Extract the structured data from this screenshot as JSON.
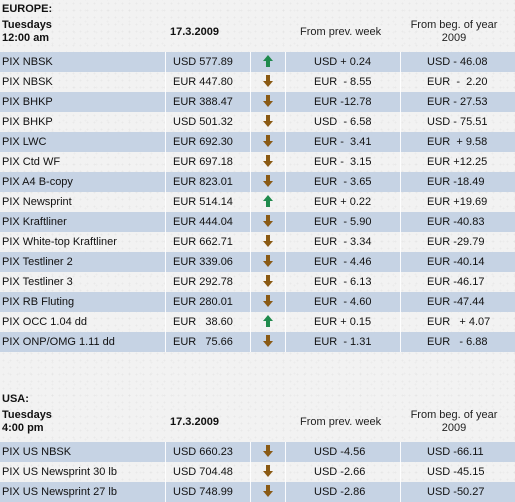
{
  "europe": {
    "region_label": "EUROPE:",
    "day_label": "Tuesdays",
    "time_label": "12:00 am",
    "date": "17.3.2009",
    "col_week": "From prev. week",
    "col_year_1": "From beg. of year",
    "col_year_2": "2009",
    "rows": [
      {
        "name": "PIX NBSK",
        "price": "USD 577.89",
        "dir": "up",
        "week": "USD + 0.24",
        "year": "USD - 46.08"
      },
      {
        "name": "PIX NBSK",
        "price": "EUR 447.80",
        "dir": "down",
        "week": "EUR  - 8.55",
        "year": "EUR  -  2.20"
      },
      {
        "name": "PIX BHKP",
        "price": "EUR 388.47",
        "dir": "down",
        "week": "EUR -12.78",
        "year": "EUR - 27.53"
      },
      {
        "name": "PIX BHKP",
        "price": "USD 501.32",
        "dir": "down",
        "week": "USD  - 6.58",
        "year": "USD - 75.51"
      },
      {
        "name": "PIX LWC",
        "price": "EUR 692.30",
        "dir": "down",
        "week": "EUR -  3.41",
        "year": "EUR  + 9.58"
      },
      {
        "name": "PIX Ctd WF",
        "price": "EUR 697.18",
        "dir": "down",
        "week": "EUR -  3.15",
        "year": "EUR +12.25"
      },
      {
        "name": "PIX A4 B-copy",
        "price": "EUR 823.01",
        "dir": "down",
        "week": "EUR  - 3.65",
        "year": "EUR -18.49"
      },
      {
        "name": "PIX Newsprint",
        "price": "EUR 514.14",
        "dir": "up",
        "week": "EUR + 0.22",
        "year": "EUR +19.69"
      },
      {
        "name": "PIX Kraftliner",
        "price": "EUR 444.04",
        "dir": "down",
        "week": "EUR  - 5.90",
        "year": "EUR -40.83"
      },
      {
        "name": "PIX White-top Kraftliner",
        "price": "EUR 662.71",
        "dir": "down",
        "week": "EUR  - 3.34",
        "year": "EUR -29.79"
      },
      {
        "name": "PIX Testliner 2",
        "price": "EUR 339.06",
        "dir": "down",
        "week": "EUR  - 4.46",
        "year": "EUR -40.14"
      },
      {
        "name": "PIX Testliner 3",
        "price": "EUR 292.78",
        "dir": "down",
        "week": "EUR  - 6.13",
        "year": "EUR -46.17"
      },
      {
        "name": "PIX RB Fluting",
        "price": "EUR 280.01",
        "dir": "down",
        "week": "EUR  - 4.60",
        "year": "EUR -47.44"
      },
      {
        "name": "PIX OCC 1.04 dd",
        "price": "EUR   38.60",
        "dir": "up",
        "week": "EUR + 0.15",
        "year": "EUR   + 4.07"
      },
      {
        "name": "PIX ONP/OMG 1.11 dd",
        "price": "EUR   75.66",
        "dir": "down",
        "week": "EUR  - 1.31",
        "year": "EUR   - 6.88"
      }
    ]
  },
  "usa": {
    "region_label": "USA:",
    "day_label": "Tuesdays",
    "time_label": "4:00 pm",
    "date": "17.3.2009",
    "col_week": "From prev. week",
    "col_year_1": "From beg. of year",
    "col_year_2": "2009",
    "rows": [
      {
        "name": "PIX US NBSK",
        "price": "USD 660.23",
        "dir": "down",
        "week": "USD -4.56",
        "year": "USD -66.11"
      },
      {
        "name": "PIX US Newsprint 30 lb",
        "price": "USD 704.48",
        "dir": "down",
        "week": "USD -2.66",
        "year": "USD -45.15"
      },
      {
        "name": "PIX US Newsprint 27 lb",
        "price": "USD 748.99",
        "dir": "down",
        "week": "USD -2.86",
        "year": "USD -50.27"
      }
    ]
  },
  "colors": {
    "row_alt": "#c6d3e4",
    "arrow_up": "#1f8a4c",
    "arrow_down": "#8a5a14"
  },
  "icons": {
    "up": "arrow-up-icon",
    "down": "arrow-down-icon"
  }
}
